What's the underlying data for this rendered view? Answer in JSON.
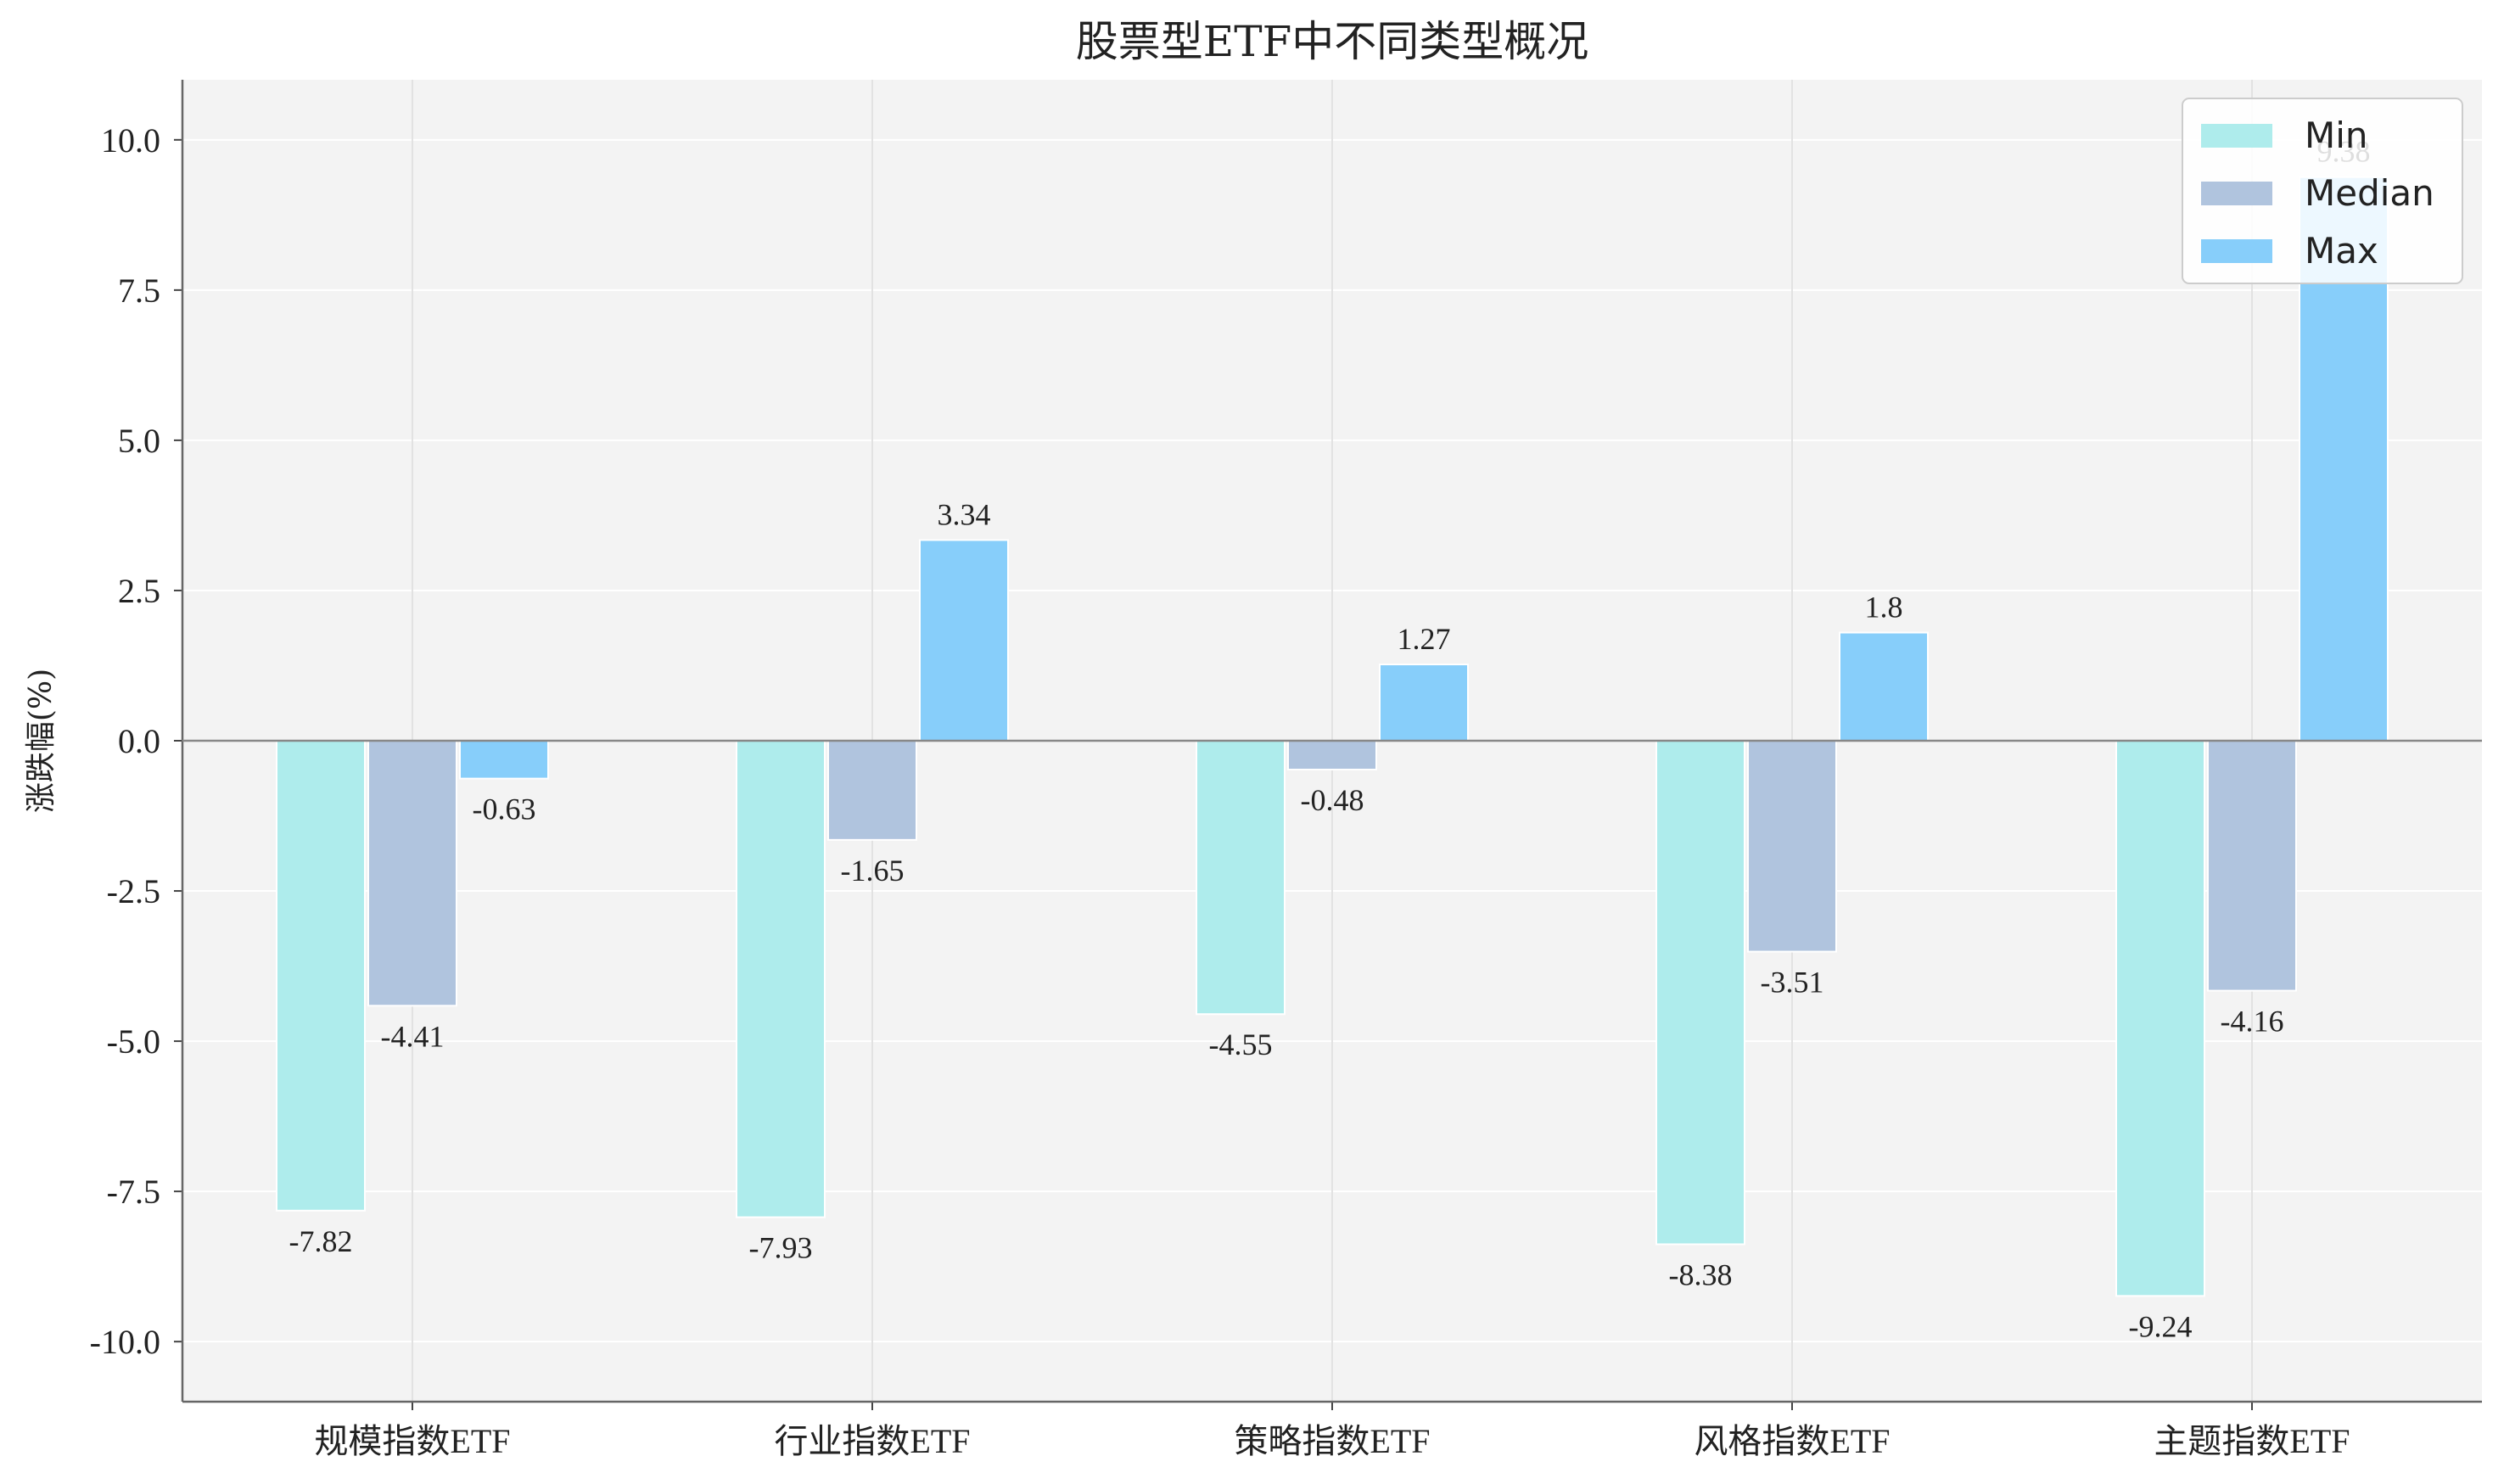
{
  "chart_data": {
    "type": "bar",
    "title": "股票型ETF中不同类型概况",
    "xlabel": "",
    "ylabel": "涨跌幅(%)",
    "categories": [
      "规模指数ETF",
      "行业指数ETF",
      "策略指数ETF",
      "风格指数ETF",
      "主题指数ETF"
    ],
    "series": [
      {
        "name": "Min",
        "values": [
          -7.82,
          -7.93,
          -4.55,
          -8.38,
          -9.24
        ],
        "color": "#aeecec"
      },
      {
        "name": "Median",
        "values": [
          -4.41,
          -1.65,
          -0.48,
          -3.51,
          -4.16
        ],
        "color": "#b0c4de"
      },
      {
        "name": "Max",
        "values": [
          -0.63,
          3.34,
          1.27,
          1.8,
          9.38
        ],
        "color": "#87cefa"
      }
    ],
    "ylim": [
      -11,
      11
    ],
    "yticks": [
      -10.0,
      -7.5,
      -5.0,
      -2.5,
      0.0,
      2.5,
      5.0,
      7.5,
      10.0
    ],
    "ytick_labels": [
      "-10.0",
      "-7.5",
      "-5.0",
      "-2.5",
      "0.0",
      "2.5",
      "5.0",
      "7.5",
      "10.0"
    ],
    "grid": true,
    "legend_position": "top-right",
    "background": "#f3f3f3"
  }
}
